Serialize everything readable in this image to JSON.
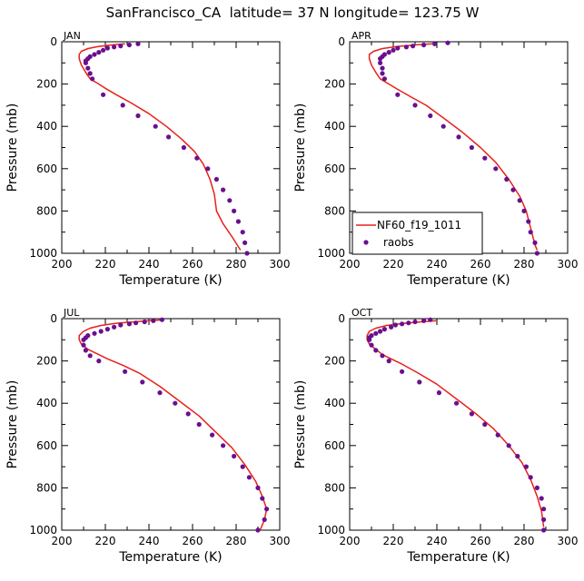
{
  "figure_title": "SanFrancisco_CA  latitude= 37 N longitude= 123.75 W",
  "colors": {
    "model_line": "#e8201a",
    "obs_marker": "#6a0f8e",
    "axis": "#000000"
  },
  "legend": {
    "model_label": "NF60_f19_1011",
    "obs_label": "raobs"
  },
  "chart_data": [
    {
      "type": "line",
      "panel": "JAN",
      "xlabel": "Temperature (K)",
      "ylabel": "Pressure (mb)",
      "xlim": [
        200,
        300
      ],
      "ylim": [
        0,
        1000
      ],
      "y_inverted": true,
      "xticks": [
        200,
        220,
        240,
        260,
        280,
        300
      ],
      "yticks": [
        0,
        200,
        400,
        600,
        800,
        1000
      ],
      "series": [
        {
          "name": "NF60_f19_1011",
          "kind": "line",
          "points": [
            [
              229,
              10
            ],
            [
              223,
              15
            ],
            [
              217,
              22
            ],
            [
              212,
              32
            ],
            [
              209,
              45
            ],
            [
              208,
              60
            ],
            [
              208,
              80
            ],
            [
              209,
              110
            ],
            [
              211,
              145
            ],
            [
              213,
              175
            ],
            [
              217,
              200
            ],
            [
              220,
              220
            ],
            [
              225,
              250
            ],
            [
              232,
              290
            ],
            [
              240,
              340
            ],
            [
              248,
              400
            ],
            [
              255,
              460
            ],
            [
              261,
              520
            ],
            [
              265,
              580
            ],
            [
              268,
              650
            ],
            [
              270,
              720
            ],
            [
              271,
              800
            ],
            [
              274,
              860
            ],
            [
              278,
              920
            ],
            [
              282,
              985
            ]
          ]
        },
        {
          "name": "raobs",
          "kind": "scatter",
          "points": [
            [
              235,
              10
            ],
            [
              231,
              15
            ],
            [
              227,
              20
            ],
            [
              224,
              25
            ],
            [
              221,
              30
            ],
            [
              219,
              40
            ],
            [
              217,
              50
            ],
            [
              215,
              60
            ],
            [
              213,
              70
            ],
            [
              212,
              80
            ],
            [
              211,
              90
            ],
            [
              211,
              100
            ],
            [
              212,
              125
            ],
            [
              213,
              150
            ],
            [
              214,
              175
            ],
            [
              219,
              250
            ],
            [
              228,
              300
            ],
            [
              235,
              350
            ],
            [
              243,
              400
            ],
            [
              249,
              450
            ],
            [
              256,
              500
            ],
            [
              262,
              550
            ],
            [
              267,
              600
            ],
            [
              271,
              650
            ],
            [
              274,
              700
            ],
            [
              277,
              750
            ],
            [
              279,
              800
            ],
            [
              281,
              850
            ],
            [
              283,
              900
            ],
            [
              284,
              950
            ],
            [
              285,
              1000
            ]
          ]
        }
      ]
    },
    {
      "type": "line",
      "panel": "APR",
      "xlabel": "Temperature (K)",
      "ylabel": "Pressure (mb)",
      "xlim": [
        200,
        300
      ],
      "ylim": [
        0,
        1000
      ],
      "y_inverted": true,
      "xticks": [
        200,
        220,
        240,
        260,
        280,
        300
      ],
      "yticks": [
        0,
        200,
        400,
        600,
        800,
        1000
      ],
      "legend_position": "lower-left",
      "series": [
        {
          "name": "NF60_f19_1011",
          "kind": "line",
          "points": [
            [
              238,
              10
            ],
            [
              230,
              15
            ],
            [
              222,
              22
            ],
            [
              215,
              32
            ],
            [
              211,
              45
            ],
            [
              209,
              60
            ],
            [
              209,
              80
            ],
            [
              210,
              110
            ],
            [
              212,
              145
            ],
            [
              214,
              175
            ],
            [
              218,
              200
            ],
            [
              222,
              225
            ],
            [
              228,
              260
            ],
            [
              235,
              300
            ],
            [
              243,
              360
            ],
            [
              252,
              430
            ],
            [
              260,
              500
            ],
            [
              267,
              570
            ],
            [
              273,
              650
            ],
            [
              278,
              730
            ],
            [
              281,
              800
            ],
            [
              283,
              880
            ],
            [
              285,
              960
            ],
            [
              286,
              985
            ]
          ]
        },
        {
          "name": "raobs",
          "kind": "scatter",
          "points": [
            [
              245,
              5
            ],
            [
              239,
              10
            ],
            [
              234,
              15
            ],
            [
              229,
              20
            ],
            [
              226,
              25
            ],
            [
              222,
              30
            ],
            [
              220,
              40
            ],
            [
              218,
              50
            ],
            [
              216,
              60
            ],
            [
              215,
              70
            ],
            [
              214,
              80
            ],
            [
              214,
              100
            ],
            [
              215,
              125
            ],
            [
              215,
              150
            ],
            [
              216,
              175
            ],
            [
              222,
              250
            ],
            [
              230,
              300
            ],
            [
              237,
              350
            ],
            [
              243,
              400
            ],
            [
              250,
              450
            ],
            [
              256,
              500
            ],
            [
              262,
              550
            ],
            [
              267,
              600
            ],
            [
              272,
              650
            ],
            [
              275,
              700
            ],
            [
              278,
              750
            ],
            [
              280,
              800
            ],
            [
              282,
              850
            ],
            [
              283,
              900
            ],
            [
              285,
              950
            ],
            [
              286,
              1000
            ]
          ]
        }
      ]
    },
    {
      "type": "line",
      "panel": "JUL",
      "xlabel": "Temperature (K)",
      "ylabel": "Pressure (mb)",
      "xlim": [
        200,
        300
      ],
      "ylim": [
        0,
        1000
      ],
      "y_inverted": true,
      "xticks": [
        200,
        220,
        240,
        260,
        280,
        300
      ],
      "yticks": [
        0,
        200,
        400,
        600,
        800,
        1000
      ],
      "series": [
        {
          "name": "NF60_f19_1011",
          "kind": "line",
          "points": [
            [
              247,
              5
            ],
            [
              240,
              10
            ],
            [
              233,
              15
            ],
            [
              225,
              22
            ],
            [
              218,
              32
            ],
            [
              213,
              45
            ],
            [
              210,
              60
            ],
            [
              208,
              80
            ],
            [
              208,
              100
            ],
            [
              209,
              120
            ],
            [
              212,
              145
            ],
            [
              216,
              165
            ],
            [
              221,
              190
            ],
            [
              228,
              220
            ],
            [
              236,
              260
            ],
            [
              245,
              320
            ],
            [
              254,
              390
            ],
            [
              263,
              460
            ],
            [
              271,
              540
            ],
            [
              278,
              610
            ],
            [
              284,
              690
            ],
            [
              289,
              770
            ],
            [
              292,
              840
            ],
            [
              294,
              900
            ],
            [
              293,
              950
            ],
            [
              291,
              1000
            ]
          ]
        },
        {
          "name": "raobs",
          "kind": "scatter",
          "points": [
            [
              246,
              5
            ],
            [
              242,
              10
            ],
            [
              238,
              15
            ],
            [
              234,
              20
            ],
            [
              231,
              25
            ],
            [
              227,
              30
            ],
            [
              224,
              40
            ],
            [
              221,
              50
            ],
            [
              218,
              60
            ],
            [
              215,
              70
            ],
            [
              212,
              80
            ],
            [
              211,
              90
            ],
            [
              210,
              100
            ],
            [
              210,
              125
            ],
            [
              211,
              150
            ],
            [
              213,
              175
            ],
            [
              217,
              200
            ],
            [
              229,
              250
            ],
            [
              237,
              300
            ],
            [
              245,
              350
            ],
            [
              252,
              400
            ],
            [
              258,
              450
            ],
            [
              263,
              500
            ],
            [
              269,
              550
            ],
            [
              274,
              600
            ],
            [
              279,
              650
            ],
            [
              283,
              700
            ],
            [
              286,
              750
            ],
            [
              290,
              800
            ],
            [
              292,
              850
            ],
            [
              294,
              900
            ],
            [
              293,
              950
            ],
            [
              290,
              1000
            ]
          ]
        }
      ]
    },
    {
      "type": "line",
      "panel": "OCT",
      "xlabel": "Temperature (K)",
      "ylabel": "Pressure (mb)",
      "xlim": [
        200,
        300
      ],
      "ylim": [
        0,
        1000
      ],
      "y_inverted": true,
      "xticks": [
        200,
        220,
        240,
        260,
        280,
        300
      ],
      "yticks": [
        0,
        200,
        400,
        600,
        800,
        1000
      ],
      "series": [
        {
          "name": "NF60_f19_1011",
          "kind": "line",
          "points": [
            [
              240,
              10
            ],
            [
              233,
              15
            ],
            [
              225,
              22
            ],
            [
              217,
              32
            ],
            [
              212,
              45
            ],
            [
              209,
              60
            ],
            [
              208,
              80
            ],
            [
              208,
              100
            ],
            [
              209,
              120
            ],
            [
              212,
              145
            ],
            [
              215,
              170
            ],
            [
              219,
              190
            ],
            [
              224,
              215
            ],
            [
              231,
              255
            ],
            [
              240,
              310
            ],
            [
              249,
              380
            ],
            [
              258,
              450
            ],
            [
              266,
              520
            ],
            [
              273,
              600
            ],
            [
              279,
              680
            ],
            [
              283,
              760
            ],
            [
              286,
              840
            ],
            [
              288,
              910
            ],
            [
              289,
              985
            ]
          ]
        },
        {
          "name": "raobs",
          "kind": "scatter",
          "points": [
            [
              237,
              5
            ],
            [
              234,
              10
            ],
            [
              230,
              15
            ],
            [
              227,
              20
            ],
            [
              224,
              25
            ],
            [
              221,
              30
            ],
            [
              219,
              40
            ],
            [
              216,
              50
            ],
            [
              214,
              60
            ],
            [
              212,
              70
            ],
            [
              210,
              80
            ],
            [
              209,
              90
            ],
            [
              209,
              100
            ],
            [
              210,
              125
            ],
            [
              212,
              150
            ],
            [
              215,
              175
            ],
            [
              218,
              200
            ],
            [
              224,
              250
            ],
            [
              232,
              300
            ],
            [
              241,
              350
            ],
            [
              249,
              400
            ],
            [
              256,
              450
            ],
            [
              262,
              500
            ],
            [
              268,
              550
            ],
            [
              273,
              600
            ],
            [
              277,
              650
            ],
            [
              281,
              700
            ],
            [
              283,
              750
            ],
            [
              286,
              800
            ],
            [
              288,
              850
            ],
            [
              289,
              900
            ],
            [
              289,
              950
            ],
            [
              289,
              1000
            ]
          ]
        }
      ]
    }
  ]
}
